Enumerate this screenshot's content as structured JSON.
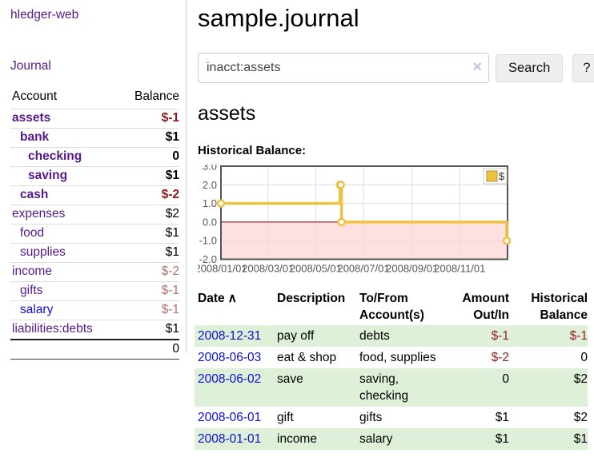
{
  "colors": {
    "link_purple": "#551a8b",
    "link_blue": "#0d0dd9",
    "negative_strong": "#8e1a1a",
    "negative_soft": "#b57171",
    "row_green": "#dff0d8",
    "chart_gold": "#edc240"
  },
  "sidebar": {
    "app_title": "hledger-web",
    "journal_link": "Journal",
    "accounts_table": {
      "account_header": "Account",
      "balance_header": "Balance",
      "rows": [
        {
          "account": "assets",
          "balance": "$-1"
        },
        {
          "account": "bank",
          "balance": "$1"
        },
        {
          "account": "checking",
          "balance": "0"
        },
        {
          "account": "saving",
          "balance": "$1"
        },
        {
          "account": "cash",
          "balance": "$-2"
        },
        {
          "account": "expenses",
          "balance": "$2"
        },
        {
          "account": "food",
          "balance": "$1"
        },
        {
          "account": "supplies",
          "balance": "$1"
        },
        {
          "account": "income",
          "balance": "$-2"
        },
        {
          "account": "gifts",
          "balance": "$-1"
        },
        {
          "account": "salary",
          "balance": "$-1"
        },
        {
          "account": "liabilities:debts",
          "balance": "$1"
        }
      ],
      "total": "0"
    }
  },
  "header": {
    "title": "sample.journal"
  },
  "search": {
    "query": "inacct:assets",
    "clear_icon": "×",
    "search_button": "Search",
    "help_button": "?"
  },
  "account_view": {
    "heading": "assets",
    "chart_title": "Historical Balance:"
  },
  "chart_data": {
    "type": "line",
    "title": "Historical Balance:",
    "steps": true,
    "series": [
      {
        "name": "$",
        "color": "#edc240",
        "points": [
          {
            "date": "2008-01-01",
            "day": 0,
            "value": 1
          },
          {
            "date": "2008-06-01",
            "day": 152,
            "value": 2
          },
          {
            "date": "2008-06-02",
            "day": 153,
            "value": 2
          },
          {
            "date": "2008-06-03",
            "day": 154,
            "value": 0
          },
          {
            "date": "2008-12-31",
            "day": 365,
            "value": -1
          }
        ]
      }
    ],
    "x_range_days": [
      0,
      366
    ],
    "ylim": [
      -2,
      3
    ],
    "y_ticks": [
      {
        "label": "3.0",
        "value": 3
      },
      {
        "label": "2.0",
        "value": 2
      },
      {
        "label": "1.0",
        "value": 1
      },
      {
        "label": "0.0",
        "value": 0
      },
      {
        "label": "-1.0",
        "value": -1
      },
      {
        "label": "-2.0",
        "value": -2
      }
    ],
    "x_ticks": [
      {
        "label": "2008/01/01",
        "day": 0
      },
      {
        "label": "2008/03/01",
        "day": 60
      },
      {
        "label": "2008/05/01",
        "day": 121
      },
      {
        "label": "2008/07/01",
        "day": 182
      },
      {
        "label": "2008/09/01",
        "day": 244
      },
      {
        "label": "2008/11/01",
        "day": 305
      }
    ],
    "grid": true,
    "negative_region_color": "#ffd6d6",
    "zero_line_color": "#8b0000",
    "legend": {
      "label": "$",
      "position": "top-right"
    }
  },
  "register_table": {
    "headers": {
      "date": "Date",
      "sort_indicator": "∧",
      "description": "Description",
      "account": "To/From Account(s)",
      "amount": "Amount Out/In",
      "balance": "Historical Balance"
    },
    "rows": [
      {
        "date": "2008-12-31",
        "description": "pay off",
        "accounts": "debts",
        "amount": "$-1",
        "balance": "$-1"
      },
      {
        "date": "2008-06-03",
        "description": "eat & shop",
        "accounts": "food, supplies",
        "amount": "$-2",
        "balance": "0"
      },
      {
        "date": "2008-06-02",
        "description": "save",
        "accounts": "saving, checking",
        "amount": "0",
        "balance": "$2"
      },
      {
        "date": "2008-06-01",
        "description": "gift",
        "accounts": "gifts",
        "amount": "$1",
        "balance": "$2"
      },
      {
        "date": "2008-01-01",
        "description": "income",
        "accounts": "salary",
        "amount": "$1",
        "balance": "$1"
      }
    ]
  }
}
